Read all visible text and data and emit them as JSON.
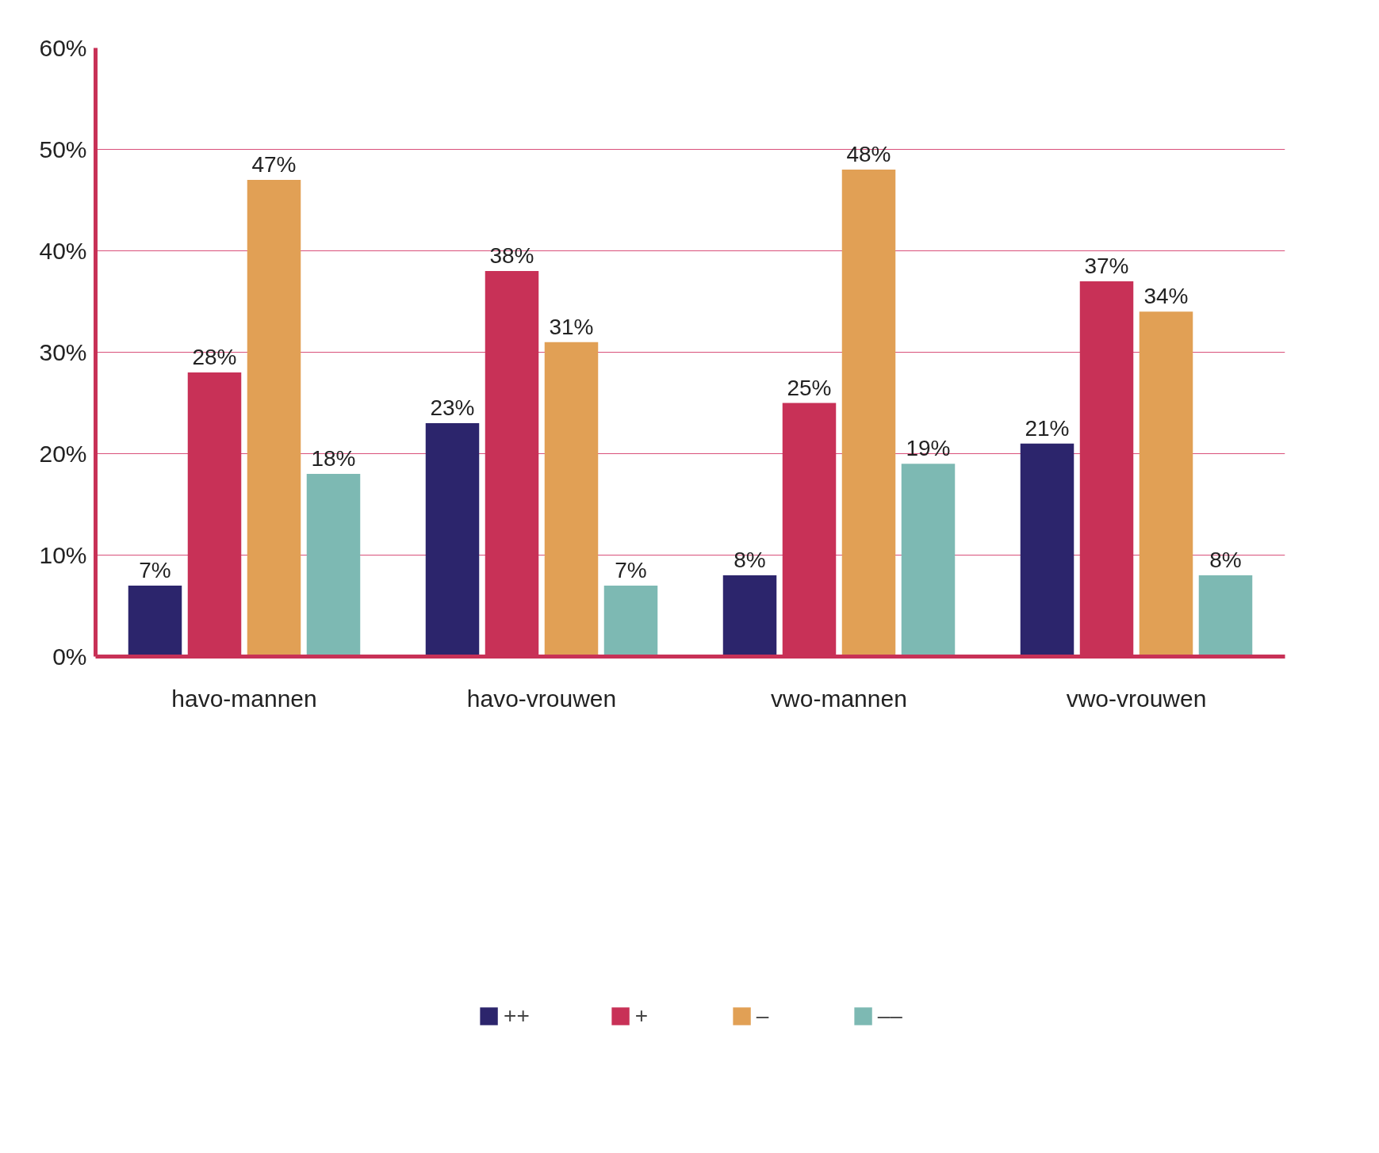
{
  "chart_data": {
    "type": "bar",
    "categories": [
      "havo-mannen",
      "havo-vrouwen",
      "vwo-mannen",
      "vwo-vrouwen"
    ],
    "series": [
      {
        "name": "++",
        "color": "#2c256c",
        "values": [
          7,
          23,
          8,
          21
        ],
        "value_labels": [
          "7%",
          "23%",
          "8%",
          "21%"
        ]
      },
      {
        "name": "+",
        "color": "#c83157",
        "values": [
          28,
          38,
          25,
          37
        ],
        "value_labels": [
          "28%",
          "38%",
          "25%",
          "37%"
        ]
      },
      {
        "name": "–",
        "color": "#e1a055",
        "values": [
          47,
          31,
          48,
          34
        ],
        "value_labels": [
          "47%",
          "31%",
          "48%",
          "34%"
        ]
      },
      {
        "name": "––",
        "color": "#7db9b3",
        "values": [
          18,
          7,
          19,
          8
        ],
        "value_labels": [
          "18%",
          "7%",
          "19%",
          "8%"
        ]
      }
    ],
    "ylim": [
      0,
      60
    ],
    "yticks": [
      {
        "value": 0,
        "label": "0%"
      },
      {
        "value": 10,
        "label": "10%"
      },
      {
        "value": 20,
        "label": "20%"
      },
      {
        "value": 30,
        "label": "30%"
      },
      {
        "value": 40,
        "label": "40%"
      },
      {
        "value": 50,
        "label": "50%"
      },
      {
        "value": 60,
        "label": "60%"
      }
    ],
    "grid": "y",
    "legend": "bottom"
  }
}
